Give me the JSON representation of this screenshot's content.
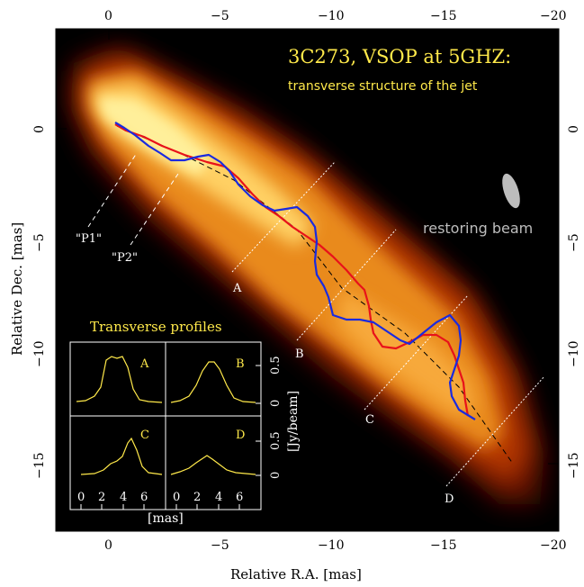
{
  "title": "3C273,   VSOP at 5GHZ:",
  "subtitle": "transverse structure of the jet",
  "beam_label": "restoring beam",
  "x_axis": {
    "label": "Relative R.A. [mas]",
    "ticks": [
      "0",
      "−5",
      "−10",
      "−15",
      "−20"
    ],
    "range": [
      2.5,
      -20
    ]
  },
  "y_axis": {
    "label": "Relative Dec. [mas]",
    "ticks": [
      "0",
      "−5",
      "−10",
      "−15"
    ],
    "range": [
      4.5,
      -18
    ]
  },
  "cut_labels": [
    "A",
    "B",
    "C",
    "D"
  ],
  "path_labels": [
    "\"P1\"",
    "\"P2\""
  ],
  "inset": {
    "title": "Transverse profiles",
    "panels": [
      "A",
      "B",
      "C",
      "D"
    ],
    "x_ticks": [
      "0",
      "2",
      "4",
      "6"
    ],
    "x_label": "[mas]",
    "y_ticks_top": [
      "0",
      "0.5"
    ],
    "y_ticks_bottom": [
      "0",
      "0.5"
    ],
    "y_label": "[Jy/beam]"
  },
  "colors": {
    "P1": "#e8121a",
    "P2": "#1a2adf",
    "text_highlight": "#ffe94a",
    "background": "#000000"
  }
}
